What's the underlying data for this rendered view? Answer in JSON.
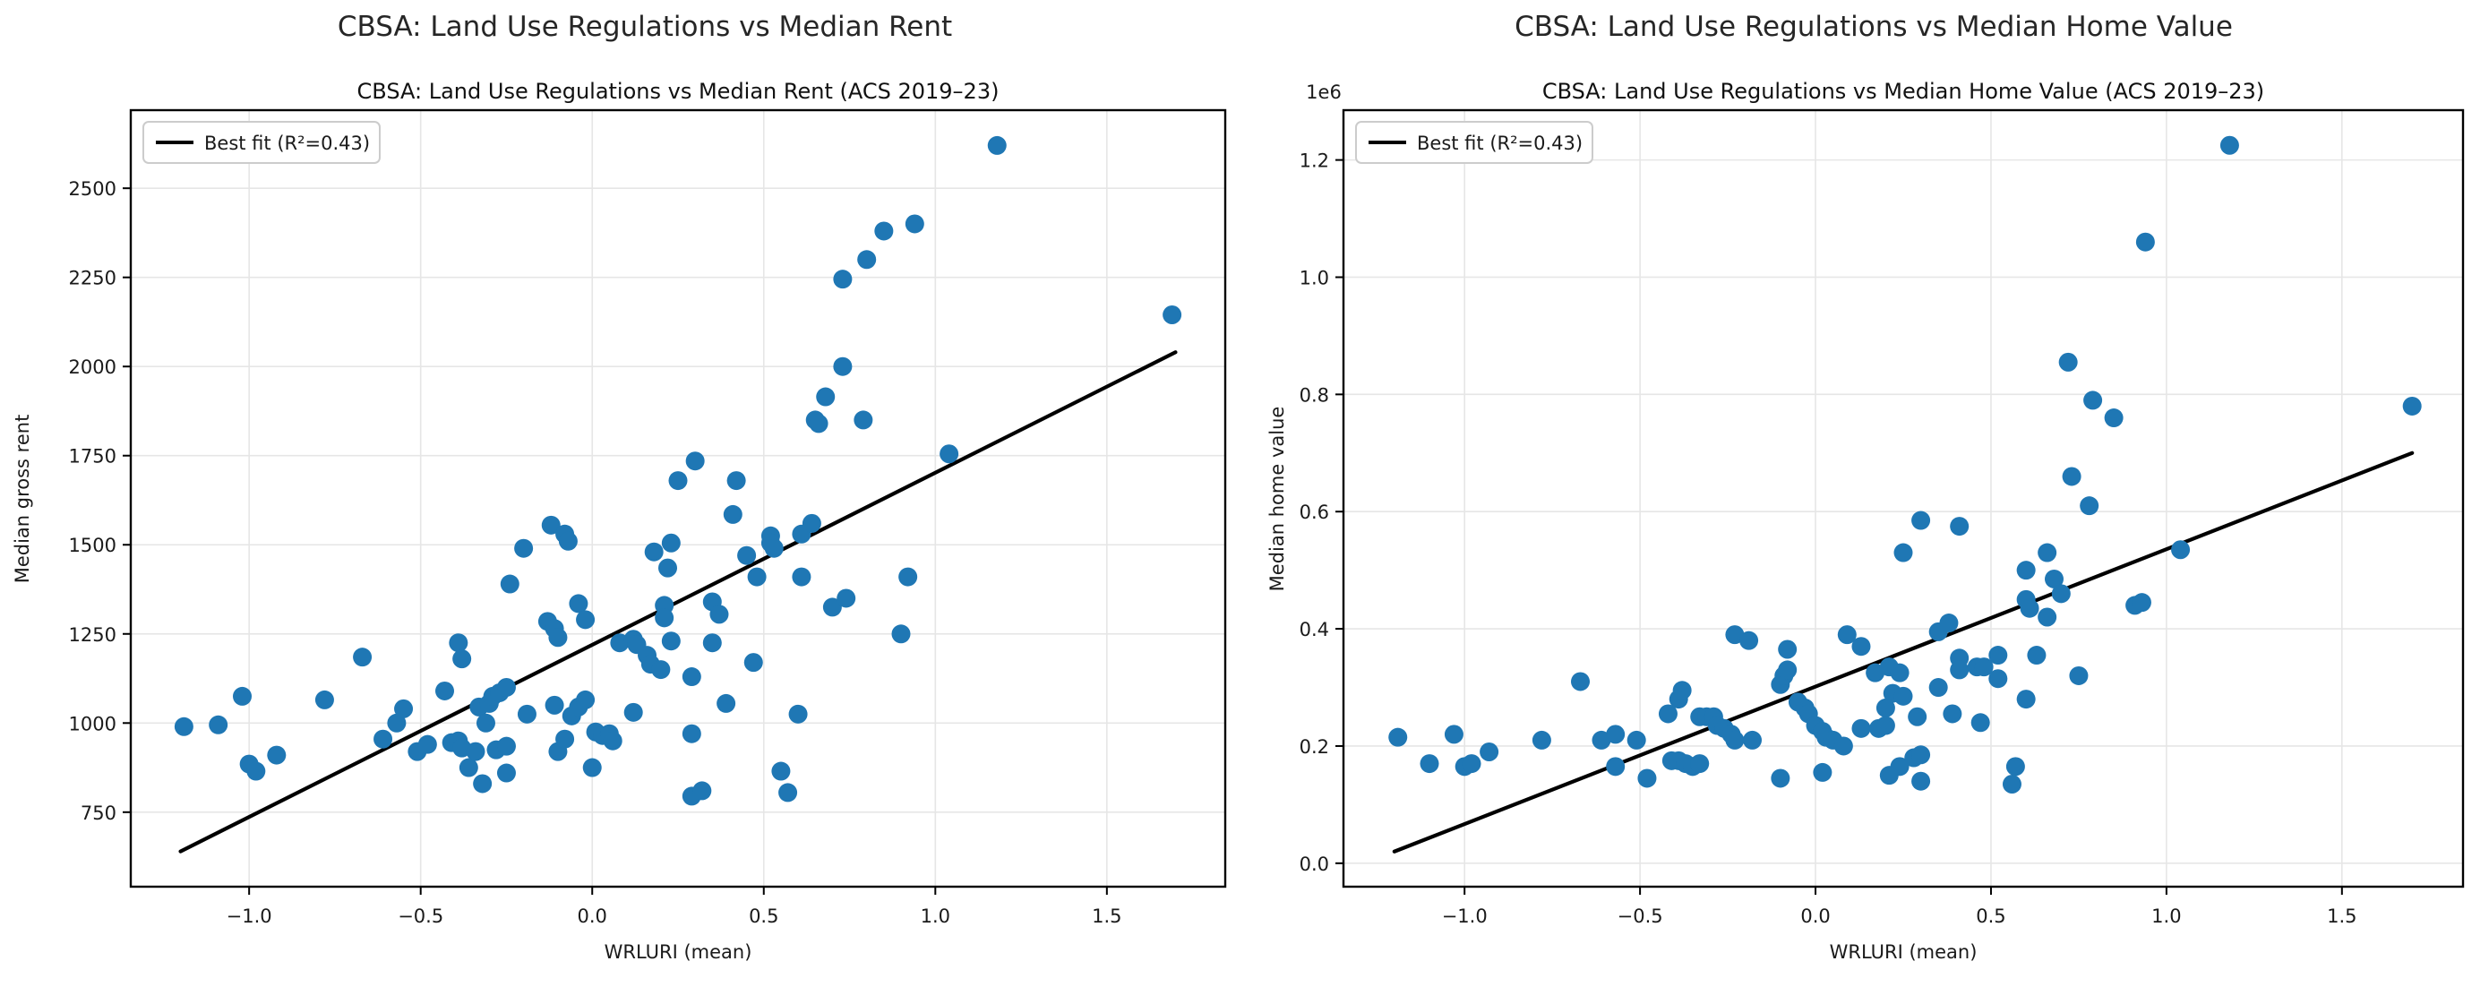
{
  "figure": {
    "background_color": "#ffffff",
    "accent_point_color": "#1f77b4",
    "fit_line_color": "#000000",
    "grid_color": "#e6e6e6",
    "spine_color": "#000000"
  },
  "chart_data": [
    {
      "type": "scatter",
      "title": "CBSA: Land Use Regulations vs Median Rent",
      "subtitle": "CBSA: Land Use Regulations vs Median Rent (ACS 2019–23)",
      "xlabel": "WRLURI (mean)",
      "ylabel": "Median gross rent",
      "legend_label": "Best fit (R²=0.43)",
      "legend_position": "upper left",
      "grid": true,
      "xlim": [
        -1.345,
        1.845
      ],
      "ylim": [
        541,
        2719
      ],
      "x_ticks": [
        -1.0,
        -0.5,
        0.0,
        0.5,
        1.0,
        1.5
      ],
      "x_tick_labels": [
        "−1.0",
        "−0.5",
        "0.0",
        "0.5",
        "1.0",
        "1.5"
      ],
      "y_ticks": [
        750,
        1000,
        1250,
        1500,
        1750,
        2000,
        2250,
        2500
      ],
      "y_tick_labels": [
        "750",
        "1000",
        "1250",
        "1500",
        "1750",
        "2000",
        "2250",
        "2500"
      ],
      "fit_line": {
        "x": [
          -1.2,
          1.7
        ],
        "y": [
          640,
          2040
        ],
        "r_squared": 0.43
      },
      "points": [
        [
          -1.19,
          990
        ],
        [
          -1.09,
          995
        ],
        [
          -1.02,
          1075
        ],
        [
          -1.0,
          885
        ],
        [
          -0.98,
          865
        ],
        [
          -0.92,
          910
        ],
        [
          -0.78,
          1065
        ],
        [
          -0.67,
          1185
        ],
        [
          -0.61,
          955
        ],
        [
          -0.57,
          1000
        ],
        [
          -0.55,
          1040
        ],
        [
          -0.51,
          920
        ],
        [
          -0.48,
          940
        ],
        [
          -0.43,
          1090
        ],
        [
          -0.41,
          945
        ],
        [
          -0.39,
          950
        ],
        [
          -0.38,
          930
        ],
        [
          -0.39,
          1225
        ],
        [
          -0.38,
          1180
        ],
        [
          -0.36,
          875
        ],
        [
          -0.34,
          920
        ],
        [
          -0.33,
          1045
        ],
        [
          -0.32,
          830
        ],
        [
          -0.31,
          1000
        ],
        [
          -0.3,
          1055
        ],
        [
          -0.29,
          1075
        ],
        [
          -0.28,
          925
        ],
        [
          -0.27,
          1085
        ],
        [
          -0.25,
          1100
        ],
        [
          -0.25,
          935
        ],
        [
          -0.25,
          860
        ],
        [
          -0.24,
          1390
        ],
        [
          -0.2,
          1490
        ],
        [
          -0.19,
          1025
        ],
        [
          -0.13,
          1285
        ],
        [
          -0.11,
          1265
        ],
        [
          -0.1,
          1240
        ],
        [
          -0.12,
          1555
        ],
        [
          -0.08,
          1530
        ],
        [
          -0.07,
          1510
        ],
        [
          -0.11,
          1050
        ],
        [
          -0.1,
          920
        ],
        [
          -0.08,
          955
        ],
        [
          -0.06,
          1020
        ],
        [
          -0.04,
          1045
        ],
        [
          -0.04,
          1335
        ],
        [
          -0.02,
          1290
        ],
        [
          -0.02,
          1065
        ],
        [
          0.0,
          875
        ],
        [
          0.01,
          975
        ],
        [
          0.03,
          965
        ],
        [
          0.05,
          970
        ],
        [
          0.06,
          950
        ],
        [
          0.08,
          1225
        ],
        [
          0.12,
          1235
        ],
        [
          0.13,
          1220
        ],
        [
          0.12,
          1030
        ],
        [
          0.16,
          1190
        ],
        [
          0.17,
          1165
        ],
        [
          0.2,
          1150
        ],
        [
          0.18,
          1480
        ],
        [
          0.22,
          1435
        ],
        [
          0.23,
          1505
        ],
        [
          0.21,
          1330
        ],
        [
          0.21,
          1295
        ],
        [
          0.23,
          1230
        ],
        [
          0.25,
          1680
        ],
        [
          0.29,
          1130
        ],
        [
          0.29,
          970
        ],
        [
          0.29,
          795
        ],
        [
          0.32,
          810
        ],
        [
          0.3,
          1735
        ],
        [
          0.35,
          1340
        ],
        [
          0.37,
          1305
        ],
        [
          0.35,
          1225
        ],
        [
          0.39,
          1055
        ],
        [
          0.41,
          1585
        ],
        [
          0.42,
          1680
        ],
        [
          0.45,
          1470
        ],
        [
          0.47,
          1170
        ],
        [
          0.48,
          1410
        ],
        [
          0.52,
          1525
        ],
        [
          0.52,
          1505
        ],
        [
          0.53,
          1490
        ],
        [
          0.55,
          865
        ],
        [
          0.57,
          805
        ],
        [
          0.6,
          1025
        ],
        [
          0.61,
          1530
        ],
        [
          0.61,
          1410
        ],
        [
          0.64,
          1560
        ],
        [
          0.65,
          1850
        ],
        [
          0.66,
          1840
        ],
        [
          0.68,
          1915
        ],
        [
          0.7,
          1325
        ],
        [
          0.73,
          2245
        ],
        [
          0.73,
          2000
        ],
        [
          0.74,
          1350
        ],
        [
          0.79,
          1850
        ],
        [
          0.8,
          2300
        ],
        [
          0.85,
          2380
        ],
        [
          0.9,
          1250
        ],
        [
          0.92,
          1410
        ],
        [
          0.94,
          2400
        ],
        [
          1.04,
          1755
        ],
        [
          1.18,
          2620
        ],
        [
          1.69,
          2145
        ]
      ]
    },
    {
      "type": "scatter",
      "title": "CBSA: Land Use Regulations vs Median Home Value",
      "subtitle": "CBSA: Land Use Regulations vs Median Home Value (ACS 2019–23)",
      "xlabel": "WRLURI (mean)",
      "ylabel": "Median home value",
      "legend_label": "Best fit (R²=0.43)",
      "legend_position": "upper left",
      "grid": true,
      "offset_text": "1e6",
      "xlim": [
        -1.345,
        1.845
      ],
      "ylim": [
        -40000,
        1285000
      ],
      "x_ticks": [
        -1.0,
        -0.5,
        0.0,
        0.5,
        1.0,
        1.5
      ],
      "x_tick_labels": [
        "−1.0",
        "−0.5",
        "0.0",
        "0.5",
        "1.0",
        "1.5"
      ],
      "y_ticks": [
        0,
        200000,
        400000,
        600000,
        800000,
        1000000,
        1200000
      ],
      "y_tick_labels": [
        "0.0",
        "0.2",
        "0.4",
        "0.6",
        "0.8",
        "1.0",
        "1.2"
      ],
      "fit_line": {
        "x": [
          -1.2,
          1.7
        ],
        "y": [
          20000,
          700000
        ],
        "r_squared": 0.43
      },
      "points": [
        [
          -1.19,
          215000
        ],
        [
          -1.1,
          170000
        ],
        [
          -1.03,
          220000
        ],
        [
          -1.0,
          165000
        ],
        [
          -0.98,
          170000
        ],
        [
          -0.93,
          190000
        ],
        [
          -0.78,
          210000
        ],
        [
          -0.67,
          310000
        ],
        [
          -0.61,
          210000
        ],
        [
          -0.57,
          220000
        ],
        [
          -0.57,
          165000
        ],
        [
          -0.51,
          210000
        ],
        [
          -0.48,
          145000
        ],
        [
          -0.42,
          255000
        ],
        [
          -0.39,
          280000
        ],
        [
          -0.38,
          295000
        ],
        [
          -0.41,
          175000
        ],
        [
          -0.39,
          175000
        ],
        [
          -0.37,
          170000
        ],
        [
          -0.35,
          165000
        ],
        [
          -0.33,
          170000
        ],
        [
          -0.33,
          250000
        ],
        [
          -0.31,
          250000
        ],
        [
          -0.29,
          250000
        ],
        [
          -0.28,
          235000
        ],
        [
          -0.26,
          230000
        ],
        [
          -0.24,
          220000
        ],
        [
          -0.23,
          210000
        ],
        [
          -0.23,
          390000
        ],
        [
          -0.19,
          380000
        ],
        [
          -0.18,
          210000
        ],
        [
          -0.1,
          145000
        ],
        [
          -0.1,
          305000
        ],
        [
          -0.09,
          320000
        ],
        [
          -0.08,
          330000
        ],
        [
          -0.08,
          365000
        ],
        [
          -0.05,
          275000
        ],
        [
          -0.03,
          265000
        ],
        [
          -0.02,
          255000
        ],
        [
          0.0,
          235000
        ],
        [
          0.02,
          225000
        ],
        [
          0.03,
          215000
        ],
        [
          0.05,
          210000
        ],
        [
          0.08,
          200000
        ],
        [
          0.02,
          155000
        ],
        [
          0.09,
          390000
        ],
        [
          0.13,
          370000
        ],
        [
          0.17,
          325000
        ],
        [
          0.21,
          335000
        ],
        [
          0.24,
          325000
        ],
        [
          0.22,
          290000
        ],
        [
          0.25,
          285000
        ],
        [
          0.2,
          265000
        ],
        [
          0.13,
          230000
        ],
        [
          0.18,
          230000
        ],
        [
          0.2,
          235000
        ],
        [
          0.24,
          165000
        ],
        [
          0.21,
          150000
        ],
        [
          0.28,
          180000
        ],
        [
          0.3,
          185000
        ],
        [
          0.3,
          140000
        ],
        [
          0.29,
          250000
        ],
        [
          0.35,
          395000
        ],
        [
          0.38,
          410000
        ],
        [
          0.41,
          350000
        ],
        [
          0.41,
          330000
        ],
        [
          0.46,
          335000
        ],
        [
          0.48,
          335000
        ],
        [
          0.52,
          355000
        ],
        [
          0.52,
          315000
        ],
        [
          0.63,
          355000
        ],
        [
          0.6,
          280000
        ],
        [
          0.75,
          320000
        ],
        [
          0.35,
          300000
        ],
        [
          0.39,
          255000
        ],
        [
          0.47,
          240000
        ],
        [
          0.56,
          135000
        ],
        [
          0.57,
          165000
        ],
        [
          0.25,
          530000
        ],
        [
          0.3,
          585000
        ],
        [
          0.41,
          575000
        ],
        [
          0.6,
          500000
        ],
        [
          0.66,
          530000
        ],
        [
          0.68,
          485000
        ],
        [
          0.7,
          460000
        ],
        [
          0.6,
          450000
        ],
        [
          0.61,
          435000
        ],
        [
          0.66,
          420000
        ],
        [
          0.91,
          440000
        ],
        [
          0.93,
          445000
        ],
        [
          1.04,
          535000
        ],
        [
          0.73,
          660000
        ],
        [
          0.78,
          610000
        ],
        [
          0.72,
          855000
        ],
        [
          0.79,
          790000
        ],
        [
          0.85,
          760000
        ],
        [
          0.94,
          1060000
        ],
        [
          1.18,
          1225000
        ],
        [
          1.7,
          780000
        ]
      ]
    }
  ]
}
